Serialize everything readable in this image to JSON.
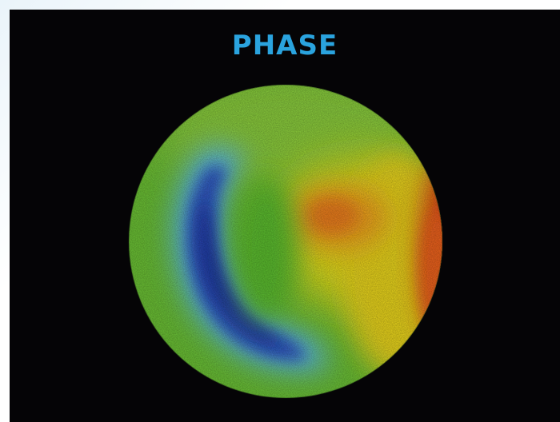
{
  "figure": {
    "title": "PHASE",
    "title_color": "#2aa3de",
    "background_color": "#050406",
    "subject": "circular-phase-map",
    "colormap": [
      "#1f3aa8",
      "#4fa6e8",
      "#7cc83a",
      "#5fbf2e",
      "#e8e020",
      "#f59a1c",
      "#e03a14"
    ]
  }
}
